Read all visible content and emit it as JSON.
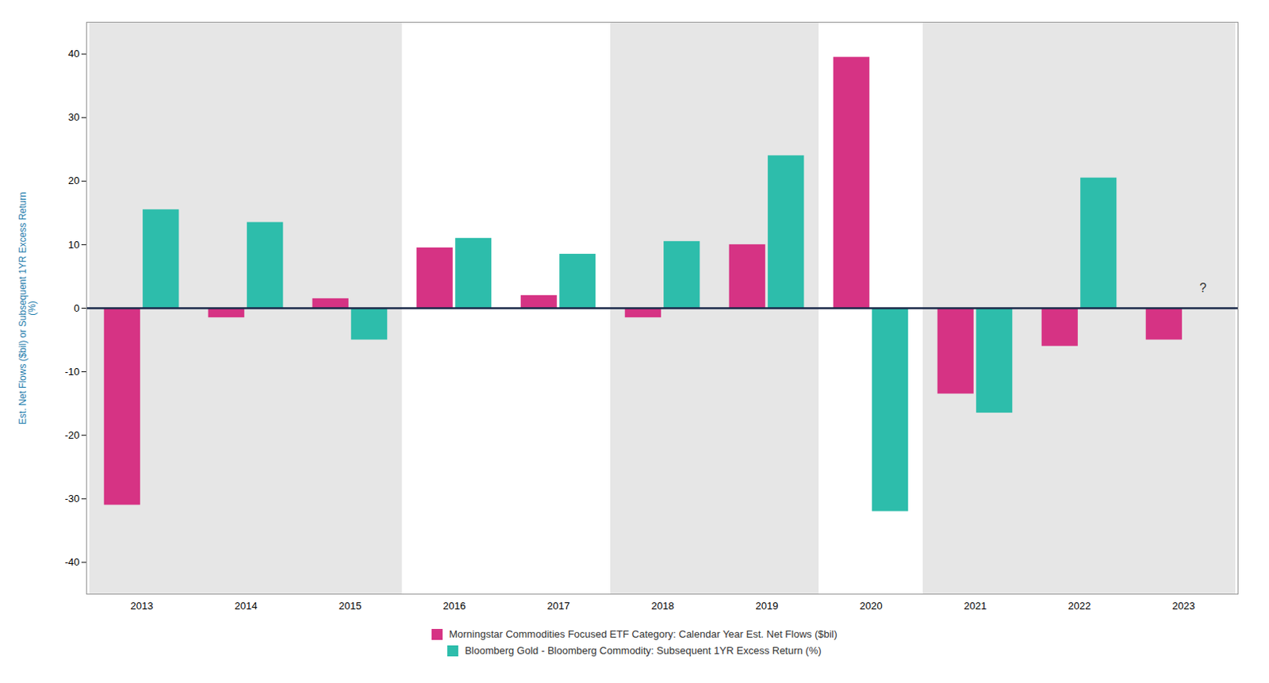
{
  "chart_data": {
    "type": "bar",
    "categories": [
      "2013",
      "2014",
      "2015",
      "2016",
      "2017",
      "2018",
      "2019",
      "2020",
      "2021",
      "2022",
      "2023"
    ],
    "series": [
      {
        "name": "Morningstar Commodities Focused ETF Category: Calendar Year Est. Net Flows ($bil)",
        "color": "#D63384",
        "values": [
          -31.0,
          -1.5,
          1.5,
          9.5,
          2.0,
          -1.5,
          10.0,
          39.5,
          -13.5,
          -6.0,
          -5.0
        ]
      },
      {
        "name": "Bloomberg Gold - Bloomberg Commodity: Subsequent 1YR Excess Return (%)",
        "color": "#2DBDAB",
        "values": [
          15.5,
          13.5,
          -5.0,
          11.0,
          8.5,
          10.5,
          24.0,
          -32.0,
          -16.5,
          20.5,
          null
        ]
      }
    ],
    "ylabel": "Est. Net Flows ($bil) or Subsequent 1YR Excess Return\n(%)",
    "ylim": [
      -45,
      45
    ],
    "yticks": [
      -40,
      -30,
      -20,
      -10,
      0,
      10,
      20,
      30,
      40
    ],
    "shaded_categories": [
      "2013",
      "2014",
      "2015",
      "2018",
      "2019",
      "2021",
      "2022",
      "2023"
    ],
    "annotations": [
      {
        "text": "?",
        "x": "2023",
        "y": 2.5,
        "series": "Bloomberg Gold - Bloomberg Commodity: Subsequent 1YR Excess Return (%)"
      }
    ],
    "grid": false,
    "legend": "bottom"
  }
}
